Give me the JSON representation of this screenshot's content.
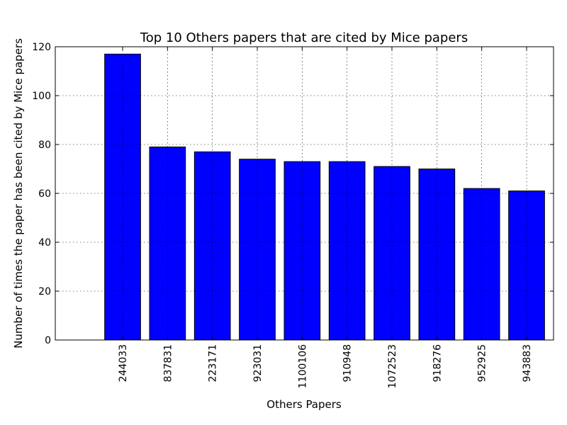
{
  "chart_data": {
    "type": "bar",
    "title": "Top 10 Others papers that are cited by Mice papers",
    "xlabel": "Others Papers",
    "ylabel": "Number of times the paper has been cited by Mice papers",
    "categories": [
      "244033",
      "837831",
      "223171",
      "923031",
      "1100106",
      "910948",
      "1072523",
      "918276",
      "952925",
      "943883"
    ],
    "values": [
      117,
      79,
      77,
      74,
      73,
      73,
      71,
      70,
      62,
      61
    ],
    "ylim": [
      0,
      120
    ],
    "yticks": [
      0,
      20,
      40,
      60,
      80,
      100,
      120
    ],
    "xlim": [
      -1.5,
      9.6
    ],
    "grid": true,
    "bar_color": "#0000ff",
    "tick_rotation": -90
  }
}
